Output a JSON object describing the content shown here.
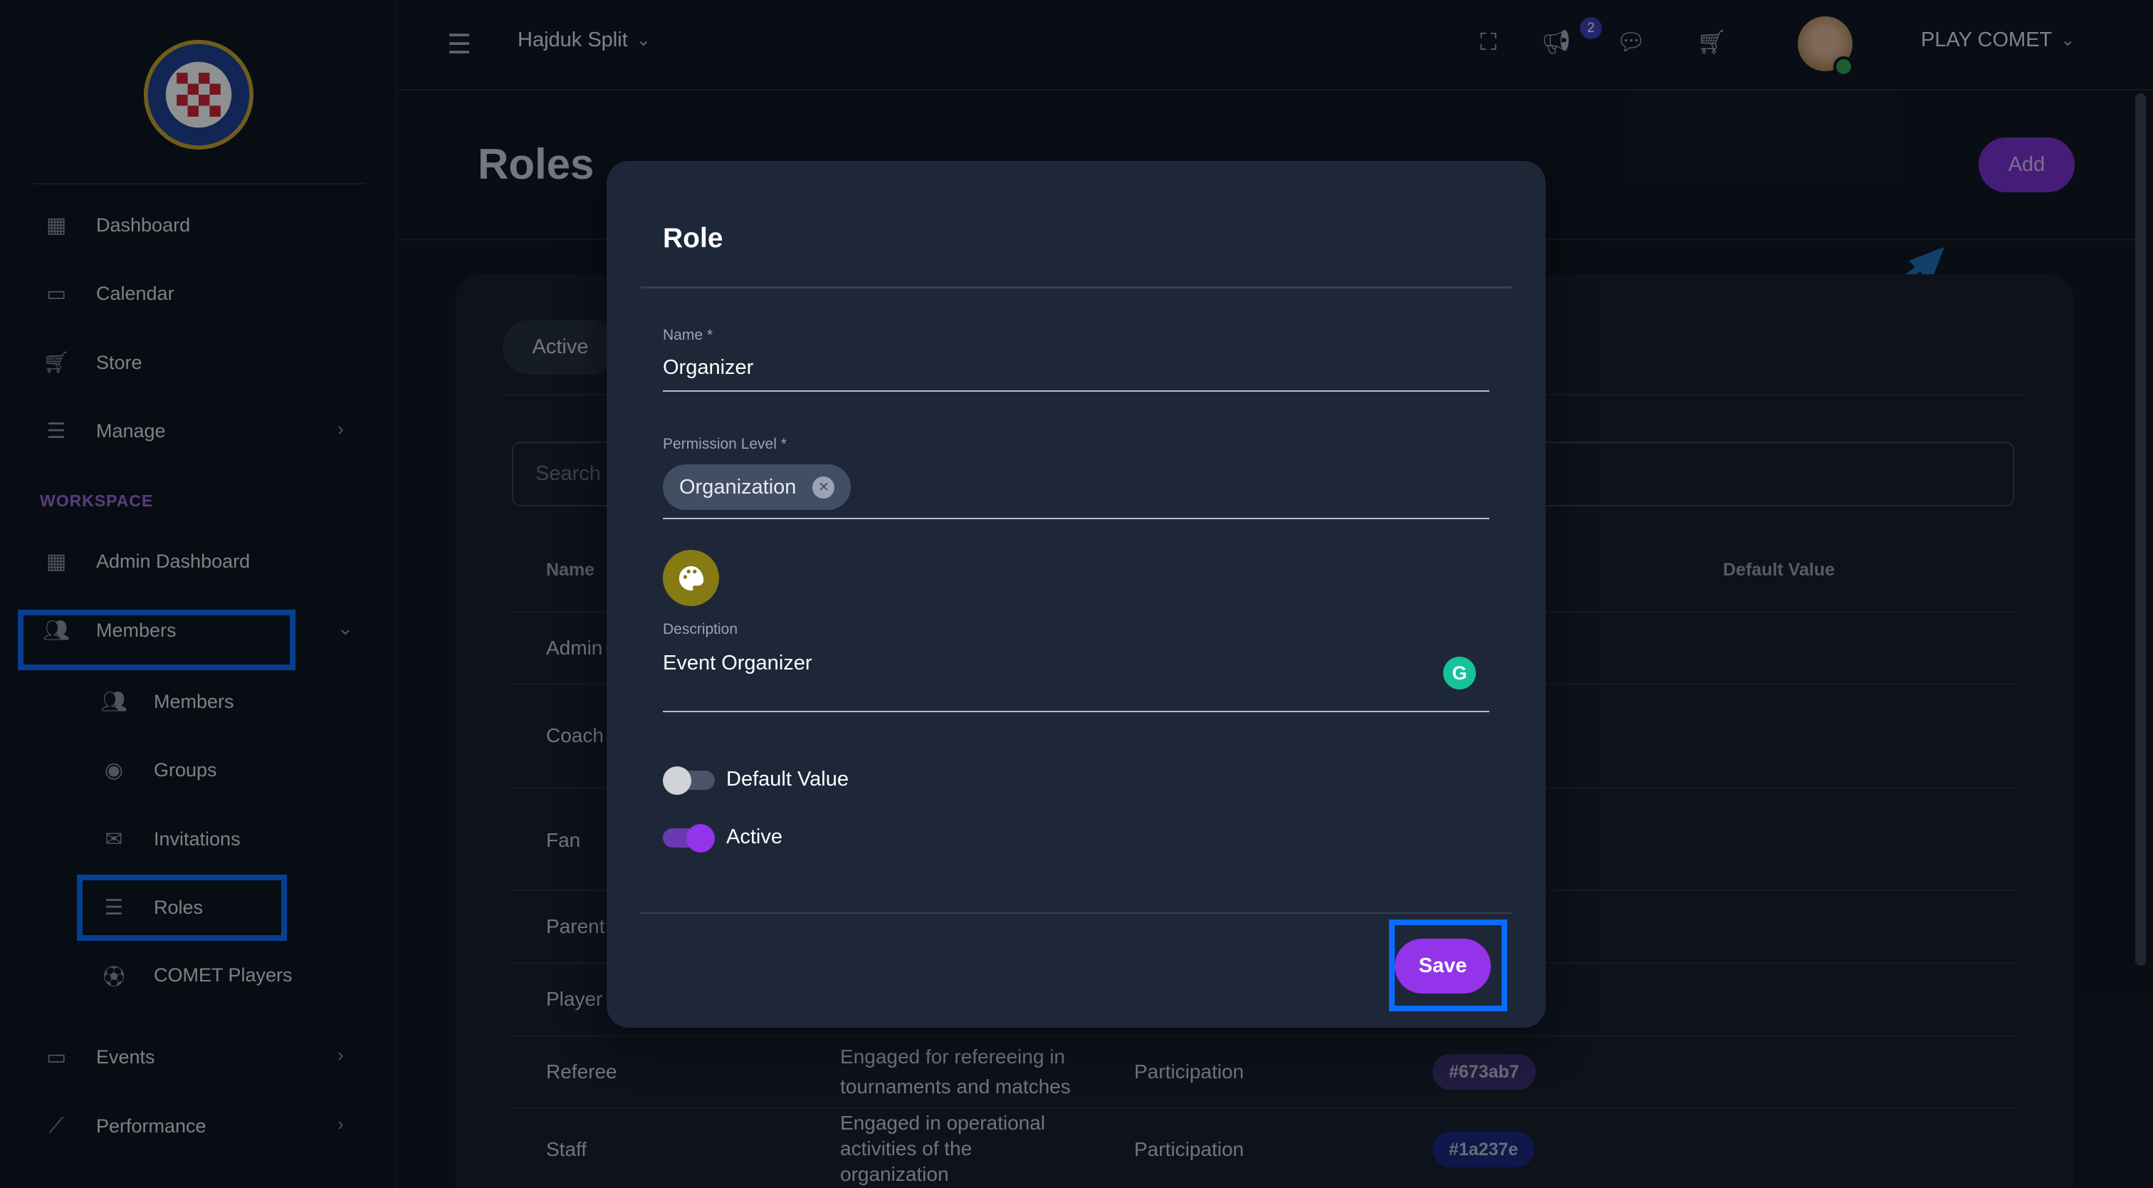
{
  "sidebar": {
    "logo_text": "HAJDUK SPLIT",
    "items": [
      {
        "label": "Dashboard",
        "icon": "dashboard-icon"
      },
      {
        "label": "Calendar",
        "icon": "calendar-icon"
      },
      {
        "label": "Store",
        "icon": "cart-icon"
      },
      {
        "label": "Manage",
        "icon": "list-icon"
      }
    ],
    "section_label": "WORKSPACE",
    "workspace_items": [
      {
        "label": "Admin Dashboard",
        "icon": "dashboard-icon"
      },
      {
        "label": "Members",
        "icon": "people-icon"
      },
      {
        "label": "Members",
        "icon": "people-icon"
      },
      {
        "label": "Groups",
        "icon": "groups-icon"
      },
      {
        "label": "Invitations",
        "icon": "mail-icon"
      },
      {
        "label": "Roles",
        "icon": "list-icon"
      },
      {
        "label": "COMET Players",
        "icon": "ball-icon"
      },
      {
        "label": "Events",
        "icon": "calendar-icon"
      },
      {
        "label": "Performance",
        "icon": "chart-icon"
      }
    ]
  },
  "topbar": {
    "org": "Hajduk Split",
    "notification_count": "2",
    "user": "PLAY COMET"
  },
  "page": {
    "title": "Roles",
    "add_label": "Add",
    "tab_active": "Active",
    "search_placeholder": "Search",
    "columns": [
      "Name",
      "Default Value"
    ],
    "rows": [
      {
        "name": "Admin"
      },
      {
        "name": "Coach"
      },
      {
        "name": "Fan"
      },
      {
        "name": "Parent"
      },
      {
        "name": "Player"
      },
      {
        "name": "Referee",
        "description": [
          "Engaged for refereeing in",
          "tournaments and matches"
        ],
        "permission": "Participation",
        "color": "#673ab7"
      },
      {
        "name": "Staff",
        "description": [
          "Engaged in operational",
          "activities of the",
          "organization"
        ],
        "permission": "Participation",
        "color": "#1a237e"
      }
    ]
  },
  "modal": {
    "title": "Role",
    "name_label": "Name *",
    "name_value": "Organizer",
    "permission_label": "Permission Level *",
    "permission_value": "Organization",
    "description_label": "Description",
    "description_value": "Event Organizer",
    "default_value_label": "Default Value",
    "default_value_on": false,
    "active_label": "Active",
    "active_on": true,
    "save_label": "Save"
  },
  "colors": {
    "accent": "#9333ea",
    "highlight": "#0a6cff",
    "palette": "#857a14"
  }
}
